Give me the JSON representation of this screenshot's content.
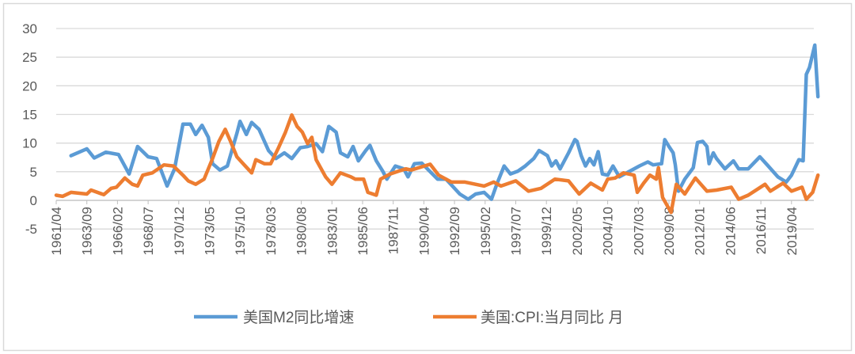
{
  "chart_data": {
    "type": "line",
    "title": "",
    "xlabel": "",
    "ylabel": "",
    "ylim": [
      -5,
      30
    ],
    "y_ticks": [
      "30",
      "25",
      "20",
      "15",
      "10",
      "5",
      "0",
      "-5"
    ],
    "x_ticks": [
      "1961/04",
      "1963/09",
      "1966/02",
      "1968/07",
      "1970/12",
      "1973/05",
      "1975/10",
      "1978/03",
      "1980/08",
      "1983/01",
      "1985/06",
      "1987/11",
      "1990/04",
      "1992/09",
      "1995/02",
      "1997/07",
      "1999/12",
      "2002/05",
      "2004/10",
      "2007/03",
      "2009/08",
      "2012/01",
      "2014/06",
      "2016/11",
      "2019/04"
    ],
    "grid": true,
    "legend_position": "bottom",
    "series": [
      {
        "name": "美国M2同比增速",
        "color": "#5B9BD5",
        "points": [
          [
            "1962/06",
            7.8
          ],
          [
            "1963/09",
            9.0
          ],
          [
            "1964/04",
            7.4
          ],
          [
            "1965/03",
            8.4
          ],
          [
            "1966/03",
            8.0
          ],
          [
            "1967/01",
            4.6
          ],
          [
            "1967/09",
            9.4
          ],
          [
            "1968/07",
            7.6
          ],
          [
            "1969/03",
            7.3
          ],
          [
            "1970/01",
            2.5
          ],
          [
            "1970/08",
            5.5
          ],
          [
            "1971/04",
            13.3
          ],
          [
            "1971/11",
            13.3
          ],
          [
            "1972/04",
            11.5
          ],
          [
            "1972/10",
            13.1
          ],
          [
            "1973/04",
            11.0
          ],
          [
            "1973/08",
            6.4
          ],
          [
            "1974/03",
            5.3
          ],
          [
            "1974/10",
            6.0
          ],
          [
            "1975/07",
            11.7
          ],
          [
            "1975/10",
            13.8
          ],
          [
            "1976/04",
            11.5
          ],
          [
            "1976/09",
            13.6
          ],
          [
            "1977/04",
            12.4
          ],
          [
            "1978/01",
            8.7
          ],
          [
            "1978/08",
            7.3
          ],
          [
            "1979/04",
            8.3
          ],
          [
            "1979/11",
            7.3
          ],
          [
            "1980/07",
            9.2
          ],
          [
            "1981/02",
            9.4
          ],
          [
            "1981/10",
            9.9
          ],
          [
            "1982/04",
            8.5
          ],
          [
            "1982/10",
            12.9
          ],
          [
            "1983/05",
            11.9
          ],
          [
            "1983/09",
            8.3
          ],
          [
            "1984/04",
            7.6
          ],
          [
            "1984/09",
            9.4
          ],
          [
            "1985/02",
            6.9
          ],
          [
            "1985/09",
            8.7
          ],
          [
            "1986/01",
            9.6
          ],
          [
            "1986/07",
            6.9
          ],
          [
            "1987/01",
            5.1
          ],
          [
            "1987/05",
            3.7
          ],
          [
            "1988/01",
            6.0
          ],
          [
            "1988/09",
            5.5
          ],
          [
            "1989/01",
            4.1
          ],
          [
            "1989/07",
            6.4
          ],
          [
            "1990/02",
            6.5
          ],
          [
            "1990/10",
            5.0
          ],
          [
            "1991/05",
            3.7
          ],
          [
            "1992/01",
            3.7
          ],
          [
            "1993/02",
            1.1
          ],
          [
            "1993/10",
            0.2
          ],
          [
            "1994/05",
            1.1
          ],
          [
            "1995/01",
            1.4
          ],
          [
            "1995/08",
            0.2
          ],
          [
            "1996/01",
            2.8
          ],
          [
            "1996/08",
            6.0
          ],
          [
            "1997/02",
            4.6
          ],
          [
            "1997/09",
            5.1
          ],
          [
            "1998/04",
            6.0
          ],
          [
            "1998/12",
            7.3
          ],
          [
            "1999/05",
            8.7
          ],
          [
            "2000/01",
            7.8
          ],
          [
            "2000/05",
            6.0
          ],
          [
            "2000/09",
            6.9
          ],
          [
            "2001/01",
            5.5
          ],
          [
            "2001/09",
            8.3
          ],
          [
            "2002/03",
            10.6
          ],
          [
            "2002/05",
            10.3
          ],
          [
            "2002/09",
            7.8
          ],
          [
            "2003/01",
            6.0
          ],
          [
            "2003/05",
            7.3
          ],
          [
            "2003/09",
            6.2
          ],
          [
            "2004/01",
            8.5
          ],
          [
            "2004/05",
            4.6
          ],
          [
            "2004/10",
            4.4
          ],
          [
            "2005/03",
            6.0
          ],
          [
            "2005/09",
            4.1
          ],
          [
            "2006/07",
            5.1
          ],
          [
            "2007/04",
            6.0
          ],
          [
            "2007/12",
            6.7
          ],
          [
            "2008/05",
            6.2
          ],
          [
            "2009/01",
            6.4
          ],
          [
            "2009/04",
            10.6
          ],
          [
            "2009/08",
            9.4
          ],
          [
            "2009/12",
            8.3
          ],
          [
            "2010/02",
            6.2
          ],
          [
            "2010/05",
            1.6
          ],
          [
            "2010/11",
            3.7
          ],
          [
            "2011/07",
            5.7
          ],
          [
            "2011/11",
            10.1
          ],
          [
            "2012/04",
            10.3
          ],
          [
            "2012/08",
            9.4
          ],
          [
            "2012/10",
            6.4
          ],
          [
            "2013/02",
            8.3
          ],
          [
            "2013/05",
            7.3
          ],
          [
            "2014/01",
            5.5
          ],
          [
            "2014/09",
            6.9
          ],
          [
            "2015/02",
            5.5
          ],
          [
            "2015/11",
            5.5
          ],
          [
            "2016/10",
            7.6
          ],
          [
            "2017/05",
            6.2
          ],
          [
            "2018/03",
            4.1
          ],
          [
            "2018/11",
            3.2
          ],
          [
            "2019/04",
            4.4
          ],
          [
            "2019/11",
            7.1
          ],
          [
            "2020/03",
            6.9
          ],
          [
            "2020/06",
            22.0
          ],
          [
            "2020/09",
            23.2
          ],
          [
            "2021/02",
            27.1
          ],
          [
            "2021/05",
            18.1
          ]
        ]
      },
      {
        "name": "美国:CPI:当月同比 月",
        "color": "#ED7D31",
        "points": [
          [
            "1961/04",
            0.9
          ],
          [
            "1961/10",
            0.7
          ],
          [
            "1962/06",
            1.4
          ],
          [
            "1963/09",
            1.1
          ],
          [
            "1964/01",
            1.8
          ],
          [
            "1965/01",
            1.0
          ],
          [
            "1965/08",
            2.1
          ],
          [
            "1966/01",
            2.3
          ],
          [
            "1966/09",
            3.9
          ],
          [
            "1967/04",
            2.8
          ],
          [
            "1967/09",
            2.5
          ],
          [
            "1968/02",
            4.4
          ],
          [
            "1968/11",
            4.8
          ],
          [
            "1969/10",
            6.2
          ],
          [
            "1970/07",
            6.0
          ],
          [
            "1971/04",
            4.4
          ],
          [
            "1971/09",
            3.4
          ],
          [
            "1972/04",
            2.8
          ],
          [
            "1972/12",
            3.7
          ],
          [
            "1973/08",
            7.3
          ],
          [
            "1974/02",
            10.3
          ],
          [
            "1974/08",
            12.4
          ],
          [
            "1975/01",
            10.3
          ],
          [
            "1975/07",
            7.6
          ],
          [
            "1976/02",
            6.2
          ],
          [
            "1976/09",
            4.8
          ],
          [
            "1977/01",
            7.1
          ],
          [
            "1977/09",
            6.4
          ],
          [
            "1978/03",
            6.4
          ],
          [
            "1978/10",
            9.0
          ],
          [
            "1979/05",
            11.9
          ],
          [
            "1979/11",
            14.9
          ],
          [
            "1980/04",
            12.9
          ],
          [
            "1980/09",
            11.9
          ],
          [
            "1981/02",
            9.9
          ],
          [
            "1981/06",
            11.0
          ],
          [
            "1981/10",
            7.1
          ],
          [
            "1982/07",
            4.1
          ],
          [
            "1983/01",
            2.8
          ],
          [
            "1983/09",
            4.8
          ],
          [
            "1984/07",
            4.1
          ],
          [
            "1984/11",
            3.7
          ],
          [
            "1985/07",
            3.7
          ],
          [
            "1985/11",
            1.4
          ],
          [
            "1986/07",
            0.9
          ],
          [
            "1986/11",
            3.7
          ],
          [
            "1987/08",
            4.6
          ],
          [
            "1988/04",
            5.1
          ],
          [
            "1988/11",
            5.5
          ],
          [
            "1989/04",
            5.3
          ],
          [
            "1990/10",
            6.3
          ],
          [
            "1991/06",
            4.4
          ],
          [
            "1992/06",
            3.2
          ],
          [
            "1993/07",
            3.2
          ],
          [
            "1995/01",
            2.5
          ],
          [
            "1995/10",
            3.2
          ],
          [
            "1996/05",
            2.5
          ],
          [
            "1997/07",
            3.4
          ],
          [
            "1998/07",
            1.6
          ],
          [
            "1999/07",
            2.1
          ],
          [
            "2000/08",
            3.7
          ],
          [
            "2001/09",
            3.4
          ],
          [
            "2002/07",
            1.1
          ],
          [
            "2003/06",
            3.0
          ],
          [
            "2004/05",
            1.8
          ],
          [
            "2004/10",
            3.7
          ],
          [
            "2005/05",
            3.9
          ],
          [
            "2006/01",
            4.8
          ],
          [
            "2006/11",
            4.4
          ],
          [
            "2007/02",
            1.4
          ],
          [
            "2007/08",
            3.0
          ],
          [
            "2008/02",
            4.4
          ],
          [
            "2008/08",
            3.7
          ],
          [
            "2008/10",
            5.7
          ],
          [
            "2009/02",
            0.5
          ],
          [
            "2009/10",
            -2.1
          ],
          [
            "2010/03",
            2.8
          ],
          [
            "2010/11",
            1.1
          ],
          [
            "2011/09",
            3.9
          ],
          [
            "2012/08",
            1.6
          ],
          [
            "2013/05",
            1.8
          ],
          [
            "2014/07",
            2.3
          ],
          [
            "2015/02",
            0.2
          ],
          [
            "2015/11",
            0.9
          ],
          [
            "2017/03",
            2.8
          ],
          [
            "2017/08",
            1.6
          ],
          [
            "2018/08",
            3.0
          ],
          [
            "2019/04",
            1.6
          ],
          [
            "2020/02",
            2.3
          ],
          [
            "2020/06",
            0.2
          ],
          [
            "2020/12",
            1.4
          ],
          [
            "2021/05",
            4.4
          ]
        ]
      }
    ]
  }
}
